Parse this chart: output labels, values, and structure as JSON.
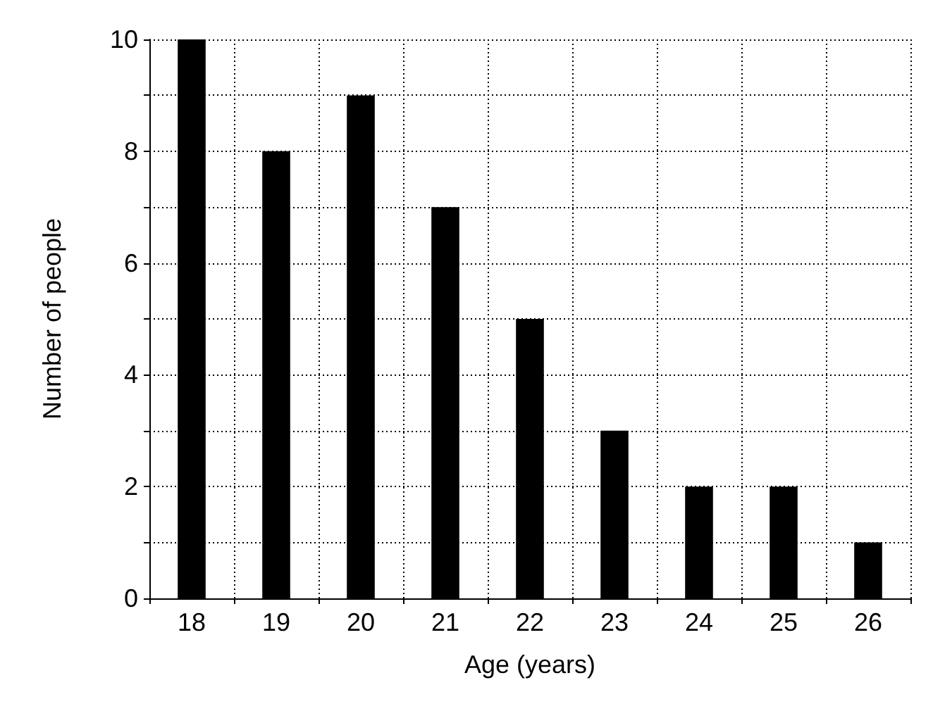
{
  "chart_data": {
    "type": "bar",
    "xlabel": "Age (years)",
    "ylabel": "Number of people",
    "categories": [
      "18",
      "19",
      "20",
      "21",
      "22",
      "23",
      "24",
      "25",
      "26"
    ],
    "values": [
      10,
      8,
      9,
      7,
      5,
      3,
      2,
      2,
      1
    ],
    "color": "#000000",
    "ylim": [
      0,
      10
    ],
    "yticks": [
      0,
      {
        "value": 1,
        "label": null
      },
      2,
      {
        "value": 3,
        "label": null
      },
      4,
      {
        "value": 5,
        "label": null
      },
      6,
      {
        "value": 7,
        "label": null
      },
      8,
      {
        "value": 9,
        "label": null
      },
      10
    ],
    "grid": true
  }
}
